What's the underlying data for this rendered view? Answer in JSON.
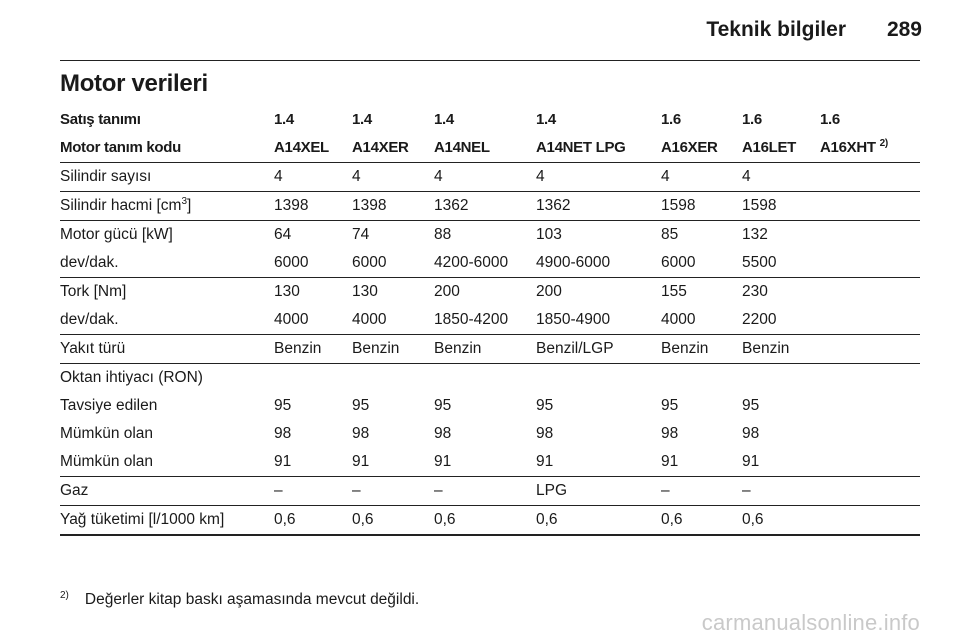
{
  "header": {
    "title": "Teknik bilgiler",
    "page": "289"
  },
  "section_title": "Motor verileri",
  "rows": {
    "sales_name": {
      "label": "Satış tanımı",
      "values": [
        "1.4",
        "1.4",
        "1.4",
        "1.4",
        "1.6",
        "1.6",
        "1.6"
      ]
    },
    "engine_code": {
      "label": "Motor tanım kodu",
      "values": [
        "A14XEL",
        "A14XER",
        "A14NEL",
        "A14NET LPG",
        "A16XER",
        "A16LET",
        "A16XHT"
      ],
      "last_note": "2)"
    },
    "cylinders": {
      "label": "Silindir sayısı",
      "values": [
        "4",
        "4",
        "4",
        "4",
        "4",
        "4"
      ]
    },
    "displacement": {
      "label": "Silindir hacmi [cm",
      "label_sup": "3",
      "label_end": "]",
      "values": [
        "1398",
        "1398",
        "1362",
        "1362",
        "1598",
        "1598"
      ]
    },
    "power": {
      "label": "Motor gücü [kW]",
      "values": [
        "64",
        "74",
        "88",
        "103",
        "85",
        "132"
      ]
    },
    "power_rpm": {
      "label": "dev/dak.",
      "values": [
        "6000",
        "6000",
        "4200-6000",
        "4900-6000",
        "6000",
        "5500"
      ]
    },
    "torque": {
      "label": "Tork [Nm]",
      "values": [
        "130",
        "130",
        "200",
        "200",
        "155",
        "230"
      ]
    },
    "torque_rpm": {
      "label": "dev/dak.",
      "values": [
        "4000",
        "4000",
        "1850-4200",
        "1850-4900",
        "4000",
        "2200"
      ]
    },
    "fuel": {
      "label": "Yakıt türü",
      "values": [
        "Benzin",
        "Benzin",
        "Benzin",
        "Benzil/LGP",
        "Benzin",
        "Benzin"
      ]
    },
    "octane": {
      "label": "Oktan ihtiyacı (RON)"
    },
    "recommended": {
      "label": "Tavsiye edilen",
      "values": [
        "95",
        "95",
        "95",
        "95",
        "95",
        "95"
      ]
    },
    "possible1": {
      "label": "Mümkün olan",
      "values": [
        "98",
        "98",
        "98",
        "98",
        "98",
        "98"
      ]
    },
    "possible2": {
      "label": "Mümkün olan",
      "values": [
        "91",
        "91",
        "91",
        "91",
        "91",
        "91"
      ]
    },
    "gas": {
      "label": "Gaz",
      "values": [
        "–",
        "–",
        "–",
        "LPG",
        "–",
        "–"
      ]
    },
    "oil": {
      "label": "Yağ tüketimi [l/1000 km]",
      "values": [
        "0,6",
        "0,6",
        "0,6",
        "0,6",
        "0,6",
        "0,6"
      ]
    }
  },
  "footnote": {
    "mark": "2)",
    "text": "Değerler kitap baskı aşamasında mevcut değildi."
  },
  "watermark": "carmanualsonline.info"
}
